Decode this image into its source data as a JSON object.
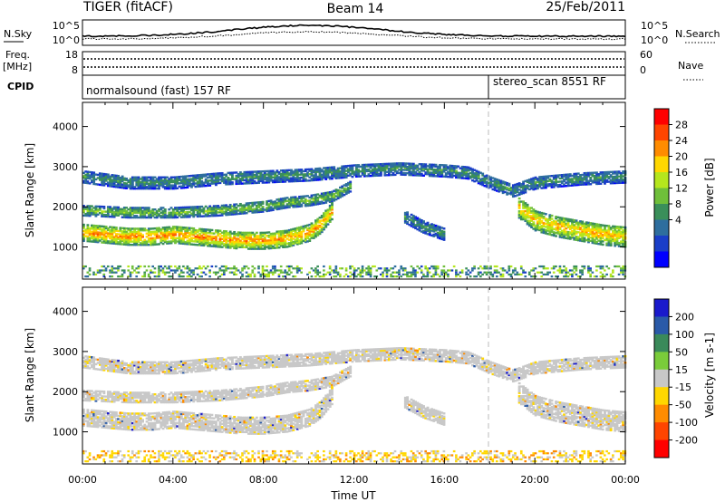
{
  "header": {
    "title": "TIGER (fitACF)",
    "beam": "Beam 14",
    "date": "25/Feb/2011"
  },
  "strips": {
    "nsky_label": "N.Sky",
    "nsky_ticks": [
      "10^5",
      "10^0"
    ],
    "nsearch_label": "N.Search",
    "nsearch_ticks": [
      "10^5",
      "10^0"
    ],
    "freq_label_1": "Freq.",
    "freq_label_2": "[MHz]",
    "freq_ticks": [
      "18",
      "8"
    ],
    "nave_label": "Nave",
    "nave_ticks": [
      "60",
      "0"
    ],
    "cpid_label": "CPID",
    "cpid_segments": [
      {
        "label": "normalsound (fast) 157 RF",
        "start_hour": 0
      },
      {
        "label": "stereo_scan 8551 RF",
        "start_hour": 18
      }
    ]
  },
  "colorbars": {
    "power": {
      "label": "Power [dB]",
      "ticks": [
        "28",
        "24",
        "20",
        "16",
        "12",
        "8",
        "4"
      ],
      "colors": [
        "#ff0000",
        "#ff4500",
        "#ff8c00",
        "#ffd700",
        "#b5e61d",
        "#6fbf3a",
        "#3a8f5a",
        "#2e6e9e",
        "#1a3ec8",
        "#0000ff"
      ]
    },
    "velocity": {
      "label": "Velocity [m s-1]",
      "ticks": [
        "200",
        "100",
        "50",
        "15",
        "-15",
        "-50",
        "-100",
        "-200"
      ],
      "colors": [
        "#1a1acc",
        "#2a5aa8",
        "#3a8a5a",
        "#7acc3a",
        "#c8c8c8",
        "#ffd700",
        "#ff8c00",
        "#ff4500",
        "#ff0000"
      ]
    }
  },
  "chart_data": [
    {
      "type": "heatmap",
      "panel": "power",
      "xlabel": "Time UT",
      "ylabel": "Slant Range [km]",
      "xlim": [
        0,
        24
      ],
      "ylim": [
        200,
        4600
      ],
      "yticks": [
        "4000",
        "3000",
        "2000",
        "1000"
      ],
      "xticks": [
        "00:00",
        "04:00",
        "08:00",
        "12:00",
        "16:00",
        "20:00",
        "00:00"
      ],
      "bands": [
        {
          "name": "far",
          "t": [
            0,
            2,
            4,
            6,
            8,
            10,
            11,
            12,
            14,
            16,
            17,
            18,
            19,
            20,
            22,
            24
          ],
          "r": [
            2750,
            2600,
            2600,
            2700,
            2750,
            2800,
            2850,
            2900,
            2950,
            2900,
            2850,
            2600,
            2400,
            2600,
            2700,
            2750
          ],
          "width": 320,
          "level": 12
        },
        {
          "name": "mid",
          "t": [
            0,
            2,
            4,
            6,
            8,
            9,
            10,
            11,
            11.8
          ],
          "r": [
            1900,
            1850,
            1850,
            1900,
            2000,
            2100,
            2150,
            2250,
            2500
          ],
          "width": 260,
          "level": 16
        },
        {
          "name": "main",
          "t": [
            0,
            1,
            2,
            3,
            4,
            5,
            6,
            7,
            8,
            9,
            10,
            10.5,
            11
          ],
          "r": [
            1350,
            1300,
            1250,
            1250,
            1300,
            1250,
            1200,
            1150,
            1150,
            1200,
            1350,
            1550,
            1900
          ],
          "width": 420,
          "level": 26
        },
        {
          "name": "late",
          "t": [
            19.2,
            20,
            21,
            22,
            23,
            24
          ],
          "r": [
            2000,
            1650,
            1500,
            1400,
            1300,
            1250
          ],
          "width": 520,
          "level": 24
        },
        {
          "name": "patch",
          "t": [
            14.2,
            15,
            16
          ],
          "r": [
            1750,
            1500,
            1300
          ],
          "width": 300,
          "level": 12
        }
      ],
      "ground_scatter_max_km": 500
    },
    {
      "type": "heatmap",
      "panel": "velocity",
      "xlabel": "Time UT",
      "ylabel": "Slant Range [km]",
      "xlim": [
        0,
        24
      ],
      "ylim": [
        200,
        4600
      ],
      "yticks": [
        "4000",
        "3000",
        "2000",
        "1000"
      ],
      "xticks": [
        "00:00",
        "04:00",
        "08:00",
        "12:00",
        "16:00",
        "20:00",
        "00:00"
      ],
      "dominant_velocity": "-15 to 15"
    }
  ],
  "x_axis_label": "Time UT",
  "x_ticks": [
    "00:00",
    "04:00",
    "08:00",
    "12:00",
    "16:00",
    "20:00",
    "00:00"
  ],
  "y_axis_label": "Slant Range [km]",
  "y_ticks": [
    "4000",
    "3000",
    "2000",
    "1000"
  ]
}
